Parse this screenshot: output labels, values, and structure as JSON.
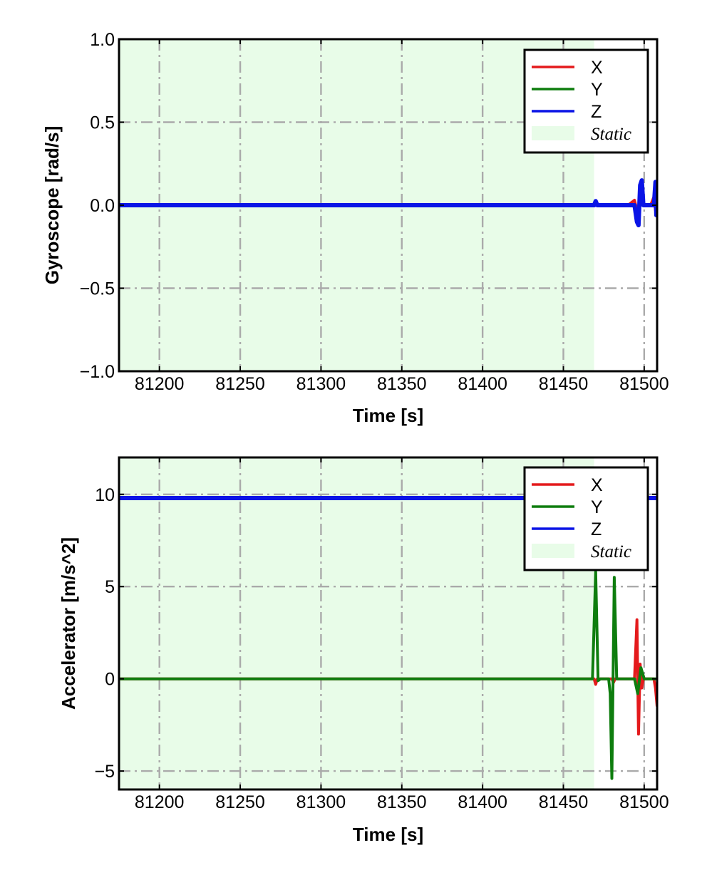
{
  "chart_data": [
    {
      "type": "line",
      "title": "",
      "xlabel": "Time [s]",
      "ylabel": "Gyroscope [rad/s]",
      "xlim": [
        81175,
        81508
      ],
      "ylim": [
        -1.0,
        1.0
      ],
      "xticks": [
        81200,
        81250,
        81300,
        81350,
        81400,
        81450,
        81500
      ],
      "xtick_labels": [
        "81200",
        "81250",
        "81300",
        "81350",
        "81400",
        "81450",
        "81500"
      ],
      "yticks": [
        1.0,
        0.5,
        0.0,
        -0.5,
        -1.0
      ],
      "ytick_labels": [
        "1.0",
        "0.5",
        "0.0",
        "−0.5",
        "−1.0"
      ],
      "grid": true,
      "legend_position": "top-right",
      "static_region": {
        "label": "Static",
        "x_start": 81175,
        "x_end": 81469,
        "color": "#e8fce8"
      },
      "series": [
        {
          "name": "X",
          "color": "#e41a1c",
          "x": [
            81175,
            81469,
            81470,
            81471,
            81490,
            81494,
            81496,
            81498,
            81500,
            81504,
            81506,
            81507,
            81508
          ],
          "y": [
            0,
            0,
            0.01,
            0,
            0,
            0.03,
            -0.05,
            0.04,
            0,
            0,
            0.05,
            -0.03,
            0
          ]
        },
        {
          "name": "Y",
          "color": "#0e7d0e",
          "x": [
            81175,
            81469,
            81470,
            81471,
            81494,
            81496,
            81498,
            81500,
            81506,
            81507,
            81508
          ],
          "y": [
            0,
            0,
            0.01,
            0,
            0,
            -0.06,
            0.06,
            0,
            0,
            0.08,
            -0.04
          ]
        },
        {
          "name": "Z",
          "color": "#0a14e6",
          "x": [
            81175,
            81469,
            81470,
            81471,
            81494,
            81495.5,
            81496.5,
            81497.5,
            81498.5,
            81499.5,
            81506,
            81507,
            81507.5,
            81508
          ],
          "y": [
            0,
            0,
            0.025,
            0,
            0,
            -0.1,
            -0.12,
            0.12,
            0.15,
            0,
            0,
            0.14,
            -0.06,
            0
          ]
        }
      ]
    },
    {
      "type": "line",
      "title": "",
      "xlabel": "Time [s]",
      "ylabel": "Accelerator [m/s^2]",
      "xlim": [
        81175,
        81508
      ],
      "ylim": [
        -6,
        12
      ],
      "xticks": [
        81200,
        81250,
        81300,
        81350,
        81400,
        81450,
        81500
      ],
      "xtick_labels": [
        "81200",
        "81250",
        "81300",
        "81350",
        "81400",
        "81450",
        "81500"
      ],
      "yticks": [
        10,
        5,
        0,
        -5
      ],
      "ytick_labels": [
        "10",
        "5",
        "0",
        "−5"
      ],
      "grid": true,
      "legend_position": "top-right",
      "static_region": {
        "label": "Static",
        "x_start": 81175,
        "x_end": 81469,
        "color": "#e8fce8"
      },
      "series": [
        {
          "name": "X",
          "color": "#e41a1c",
          "x": [
            81175,
            81469,
            81470,
            81471,
            81480,
            81481,
            81482,
            81494,
            81495.5,
            81496.5,
            81497.5,
            81498.5,
            81499.5,
            81506,
            81507,
            81508
          ],
          "y": [
            0,
            0,
            -0.3,
            0,
            0,
            -0.2,
            0,
            0,
            3.2,
            -3.0,
            0.8,
            -0.5,
            0,
            0,
            -0.5,
            -1.5
          ]
        },
        {
          "name": "Y",
          "color": "#0e7d0e",
          "x": [
            81175,
            81468,
            81470,
            81471.5,
            81473,
            81478,
            81479,
            81480,
            81481.5,
            81483,
            81494,
            81496,
            81498,
            81500,
            81508
          ],
          "y": [
            0,
            0,
            5.8,
            -0.1,
            0,
            0,
            -0.8,
            -5.4,
            5.5,
            0,
            0,
            -0.8,
            0.6,
            0,
            0
          ]
        },
        {
          "name": "Z",
          "color": "#0a14e6",
          "x": [
            81175,
            81469,
            81508
          ],
          "y": [
            9.8,
            9.8,
            9.8
          ]
        }
      ]
    }
  ]
}
